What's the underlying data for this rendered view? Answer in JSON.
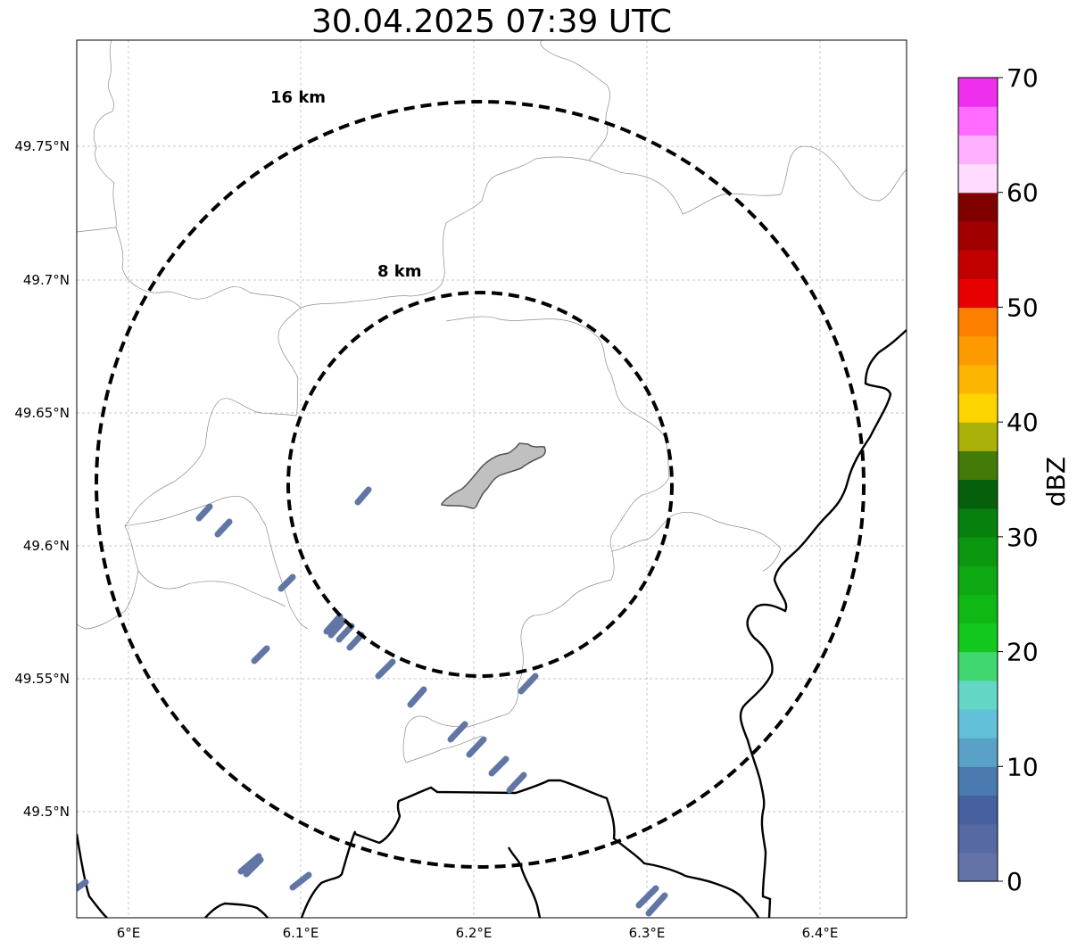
{
  "title": "30.04.2025 07:39 UTC",
  "map": {
    "lon_range": [
      5.97,
      6.45
    ],
    "lat_range": [
      49.46,
      49.79
    ],
    "lon_ticks": [
      {
        "value": 6.0,
        "label": "6°E"
      },
      {
        "value": 6.1,
        "label": "6.1°E"
      },
      {
        "value": 6.2,
        "label": "6.2°E"
      },
      {
        "value": 6.3,
        "label": "6.3°E"
      },
      {
        "value": 6.4,
        "label": "6.4°E"
      }
    ],
    "lat_ticks": [
      {
        "value": 49.5,
        "label": "49.5°N"
      },
      {
        "value": 49.55,
        "label": "49.55°N"
      },
      {
        "value": 49.6,
        "label": "49.6°N"
      },
      {
        "value": 49.65,
        "label": "49.65°N"
      },
      {
        "value": 49.7,
        "label": "49.7°N"
      },
      {
        "value": 49.75,
        "label": "49.75°N"
      }
    ],
    "range_rings": [
      {
        "label": "8 km"
      },
      {
        "label": "16 km"
      }
    ],
    "grid": true
  },
  "colorbar": {
    "label": "dBZ",
    "min": 0,
    "max": 70,
    "ticks": [
      "0",
      "10",
      "20",
      "30",
      "40",
      "50",
      "60",
      "70"
    ],
    "colors": [
      "#6373a8",
      "#5669a3",
      "#46609f",
      "#4b7ab0",
      "#59a1c6",
      "#62c0d8",
      "#63d6c6",
      "#40d670",
      "#12c71e",
      "#10b816",
      "#0ea812",
      "#0b9810",
      "#08800e",
      "#065f0a",
      "#447a08",
      "#aab108",
      "#fcd500",
      "#fcb500",
      "#fc9a00",
      "#fc7f00",
      "#e60000",
      "#c20000",
      "#a00000",
      "#800000",
      "#ffdcff",
      "#ffb0ff",
      "#ff6cff",
      "#ee30ee"
    ]
  }
}
